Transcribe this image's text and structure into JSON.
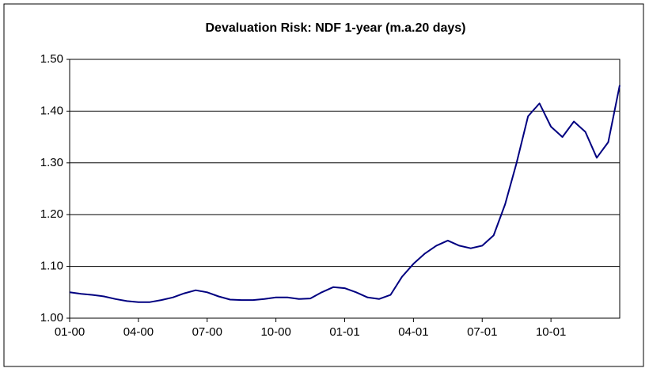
{
  "chart_data": {
    "type": "line",
    "title": "Devaluation Risk: NDF 1-year (m.a.20 days)",
    "categories": [
      "01-00",
      null,
      null,
      null,
      null,
      null,
      "04-00",
      null,
      null,
      null,
      null,
      null,
      "07-00",
      null,
      null,
      null,
      null,
      null,
      "10-00",
      null,
      null,
      null,
      null,
      null,
      "01-01",
      null,
      null,
      null,
      null,
      null,
      "04-01",
      null,
      null,
      null,
      null,
      null,
      "07-01",
      null,
      null,
      null,
      null,
      null,
      "10-01",
      null,
      null,
      null,
      null,
      null,
      null
    ],
    "series": [
      {
        "name": "NDF 1-year",
        "color": "#000080",
        "values": [
          1.05,
          1.047,
          1.045,
          1.042,
          1.037,
          1.033,
          1.031,
          1.031,
          1.035,
          1.04,
          1.048,
          1.054,
          1.05,
          1.042,
          1.036,
          1.035,
          1.035,
          1.037,
          1.04,
          1.04,
          1.037,
          1.038,
          1.05,
          1.06,
          1.058,
          1.05,
          1.04,
          1.037,
          1.045,
          1.08,
          1.105,
          1.125,
          1.14,
          1.15,
          1.14,
          1.135,
          1.14,
          1.16,
          1.22,
          1.3,
          1.39,
          1.415,
          1.37,
          1.35,
          1.38,
          1.36,
          1.31,
          1.34,
          1.45
        ]
      }
    ],
    "ylim": [
      1.0,
      1.5
    ],
    "yticks": [
      {
        "value": 1.0,
        "label": "1.00"
      },
      {
        "value": 1.1,
        "label": "1.10"
      },
      {
        "value": 1.2,
        "label": "1.20"
      },
      {
        "value": 1.3,
        "label": "1.30"
      },
      {
        "value": 1.4,
        "label": "1.40"
      },
      {
        "value": 1.5,
        "label": "1.50"
      }
    ],
    "grid": true
  }
}
